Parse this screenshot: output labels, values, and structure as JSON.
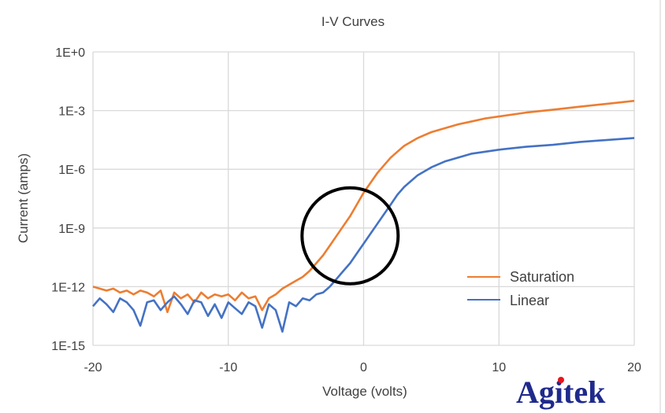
{
  "chart_data": {
    "type": "line",
    "title": "I-V Curves",
    "xlabel": "Voltage (volts)",
    "ylabel": "Current (amps)",
    "xlim": [
      -20,
      20
    ],
    "ylim": [
      1e-15,
      1
    ],
    "y_scale": "log",
    "grid": true,
    "legend_position": "right",
    "x_ticks": [
      "-20",
      "-10",
      "0",
      "10",
      "20"
    ],
    "x_tick_values": [
      -20,
      -10,
      0,
      10,
      20
    ],
    "y_ticks": [
      "1E+0",
      "1E-3",
      "1E-6",
      "1E-9",
      "1E-12",
      "1E-15"
    ],
    "y_tick_values": [
      1,
      0.001,
      1e-06,
      1e-09,
      1e-12,
      1e-15
    ],
    "series": [
      {
        "name": "Saturation",
        "color": "#ed7d31",
        "x": [
          -20,
          -19.5,
          -19,
          -18.5,
          -18,
          -17.5,
          -17,
          -16.5,
          -16,
          -15.5,
          -15,
          -14.5,
          -14,
          -13.5,
          -13,
          -12.5,
          -12,
          -11.5,
          -11,
          -10.5,
          -10,
          -9.5,
          -9,
          -8.5,
          -8,
          -7.5,
          -7,
          -6.5,
          -6,
          -5.5,
          -5,
          -4.5,
          -4,
          -3.5,
          -3,
          -2.5,
          -2,
          -1.5,
          -1,
          -0.5,
          0,
          0.5,
          1,
          1.5,
          2,
          2.5,
          3,
          3.5,
          4,
          5,
          6,
          7,
          8,
          9,
          10,
          12,
          14,
          16,
          18,
          20
        ],
        "log10_current": [
          -12.0,
          -12.1,
          -12.2,
          -12.1,
          -12.3,
          -12.2,
          -12.4,
          -12.2,
          -12.3,
          -12.5,
          -12.2,
          -13.3,
          -12.3,
          -12.6,
          -12.4,
          -12.8,
          -12.3,
          -12.6,
          -12.4,
          -12.5,
          -12.4,
          -12.7,
          -12.3,
          -12.6,
          -12.5,
          -13.2,
          -12.6,
          -12.4,
          -12.1,
          -11.9,
          -11.7,
          -11.5,
          -11.2,
          -10.8,
          -10.4,
          -9.9,
          -9.4,
          -8.9,
          -8.4,
          -7.8,
          -7.2,
          -6.7,
          -6.2,
          -5.8,
          -5.4,
          -5.1,
          -4.8,
          -4.6,
          -4.4,
          -4.1,
          -3.9,
          -3.7,
          -3.55,
          -3.4,
          -3.3,
          -3.1,
          -2.95,
          -2.8,
          -2.65,
          -2.5
        ]
      },
      {
        "name": "Linear",
        "color": "#4472c4",
        "x": [
          -20,
          -19.5,
          -19,
          -18.5,
          -18,
          -17.5,
          -17,
          -16.5,
          -16,
          -15.5,
          -15,
          -14.5,
          -14,
          -13.5,
          -13,
          -12.5,
          -12,
          -11.5,
          -11,
          -10.5,
          -10,
          -9.5,
          -9,
          -8.5,
          -8,
          -7.5,
          -7,
          -6.5,
          -6,
          -5.5,
          -5,
          -4.5,
          -4,
          -3.5,
          -3,
          -2.5,
          -2,
          -1.5,
          -1,
          -0.5,
          0,
          0.5,
          1,
          1.5,
          2,
          2.5,
          3,
          3.5,
          4,
          5,
          6,
          7,
          8,
          10,
          12,
          14,
          16,
          18,
          20
        ],
        "log10_current": [
          -13.0,
          -12.6,
          -12.9,
          -13.3,
          -12.6,
          -12.8,
          -13.2,
          -14.0,
          -12.8,
          -12.7,
          -13.2,
          -12.8,
          -12.5,
          -12.9,
          -13.4,
          -12.7,
          -12.8,
          -13.5,
          -12.9,
          -13.6,
          -12.8,
          -13.1,
          -13.4,
          -12.8,
          -13.0,
          -14.1,
          -12.9,
          -13.2,
          -14.3,
          -12.8,
          -13.0,
          -12.6,
          -12.7,
          -12.4,
          -12.3,
          -12.0,
          -11.6,
          -11.2,
          -10.8,
          -10.3,
          -9.8,
          -9.3,
          -8.8,
          -8.3,
          -7.8,
          -7.3,
          -6.9,
          -6.6,
          -6.3,
          -5.9,
          -5.6,
          -5.4,
          -5.2,
          -5.0,
          -4.85,
          -4.75,
          -4.6,
          -4.5,
          -4.4
        ]
      }
    ],
    "annotation": {
      "shape": "circle",
      "color": "#000000",
      "center_x": -1,
      "center_log10_current": -9.4
    }
  },
  "logo": {
    "text": "Agitek",
    "color": "#1f2a8c",
    "dot_color": "#e8141b"
  }
}
